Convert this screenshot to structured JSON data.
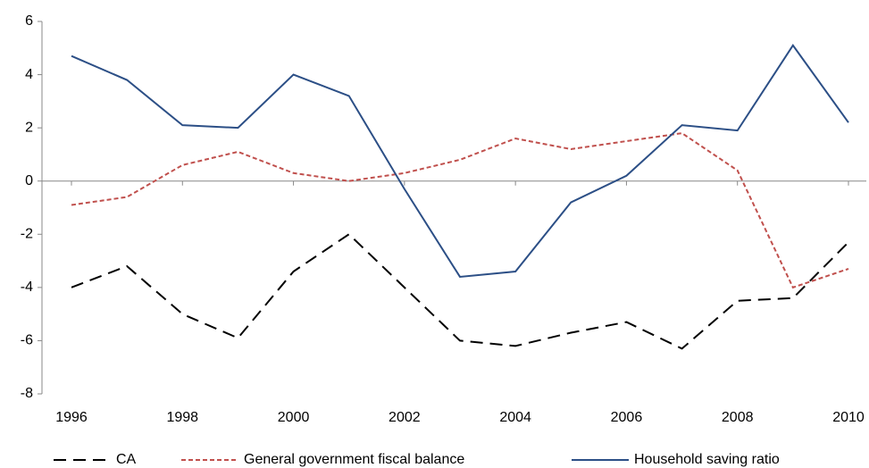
{
  "chart_data": {
    "type": "line",
    "x": [
      1996,
      1997,
      1998,
      1999,
      2000,
      2001,
      2002,
      2003,
      2004,
      2005,
      2006,
      2007,
      2008,
      2009,
      2010
    ],
    "xlim": [
      1996,
      2010
    ],
    "xticks": [
      1996,
      1998,
      2000,
      2002,
      2004,
      2006,
      2008,
      2010
    ],
    "ylim": [
      -8,
      6
    ],
    "yticks": [
      -8,
      -6,
      -4,
      -2,
      0,
      2,
      4,
      6
    ],
    "series": [
      {
        "name": "CA",
        "color": "#000000",
        "style": "dashed",
        "values": [
          -4.0,
          -3.2,
          -5.0,
          -5.9,
          -3.4,
          -2.0,
          -4.0,
          -6.0,
          -6.2,
          -5.7,
          -5.3,
          -6.3,
          -4.5,
          -4.4,
          -2.3
        ]
      },
      {
        "name": "General government fiscal balance",
        "color": "#c0504d",
        "style": "dotted",
        "values": [
          -0.9,
          -0.6,
          0.6,
          1.1,
          0.3,
          0.0,
          0.3,
          0.8,
          1.6,
          1.2,
          1.5,
          1.8,
          0.4,
          -4.0,
          -3.3
        ]
      },
      {
        "name": "Household saving ratio",
        "color": "#2c4f86",
        "style": "solid",
        "values": [
          4.7,
          3.8,
          2.1,
          2.0,
          4.0,
          3.2,
          -0.3,
          -3.6,
          -3.4,
          -0.8,
          0.2,
          2.1,
          1.9,
          5.1,
          2.2
        ]
      }
    ]
  }
}
